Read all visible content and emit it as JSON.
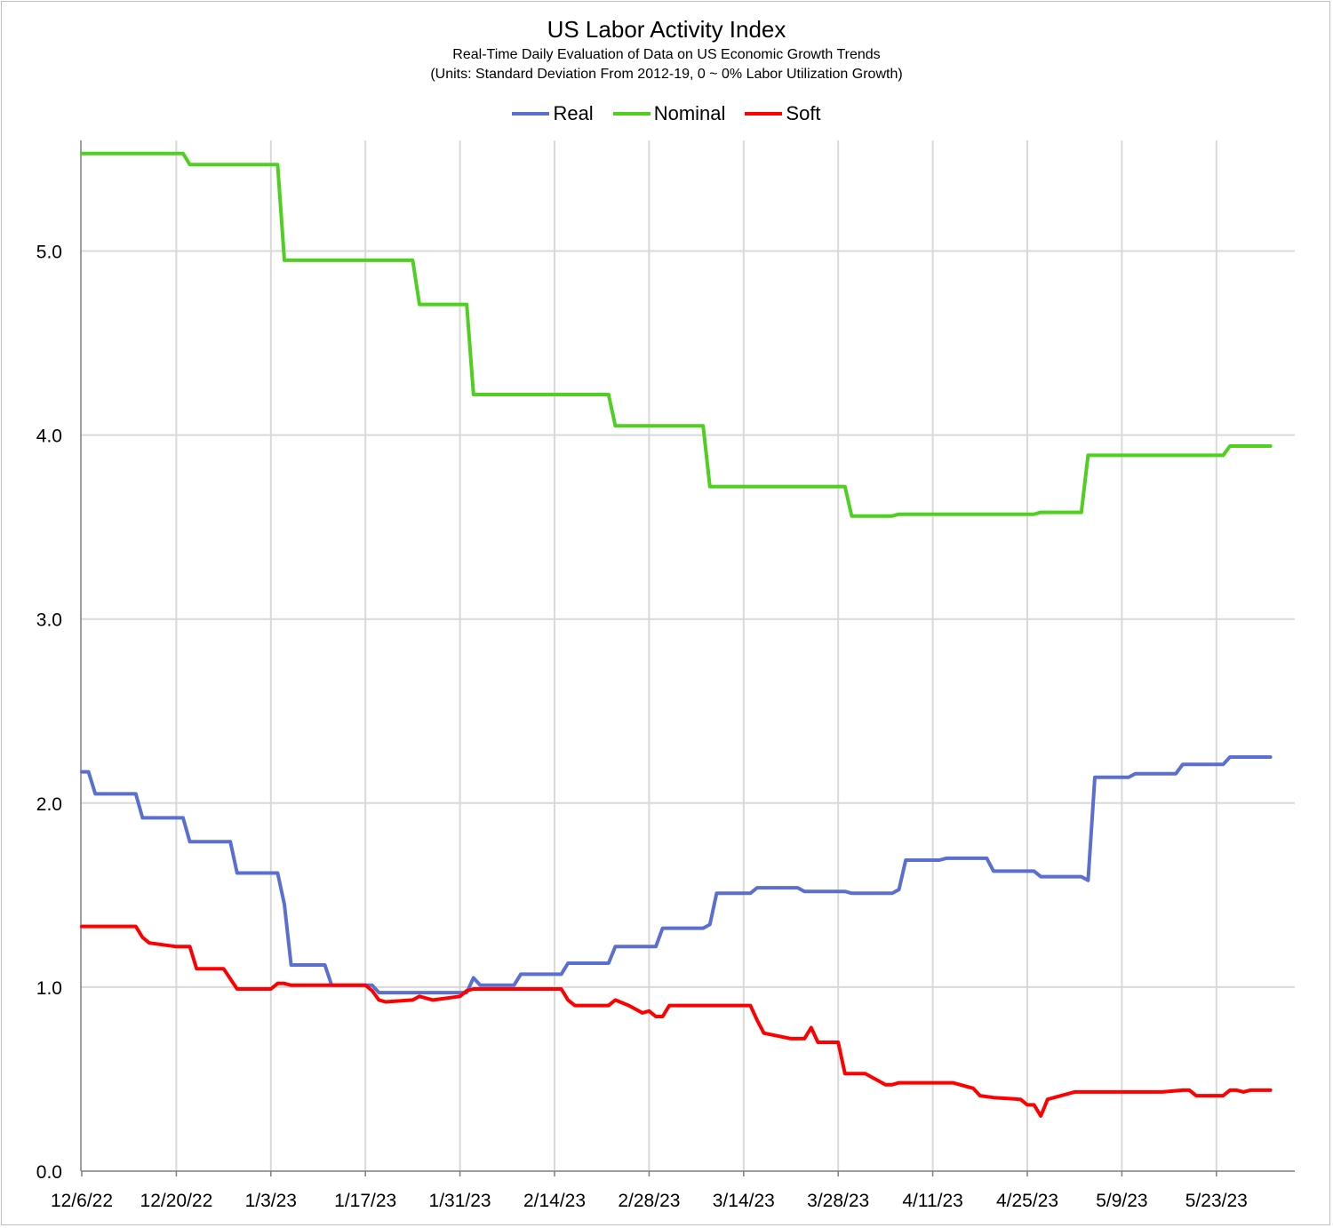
{
  "chart_data": {
    "type": "line",
    "title": "US Labor Activity Index",
    "subtitle_1": "Real-Time Daily Evaluation of Data on US Economic Growth Trends",
    "subtitle_2": "(Units: Standard Deviation From 2012-19, 0 ~ 0%  Labor Utilization Growth)",
    "x_ticks": [
      "12/6/22",
      "12/20/22",
      "1/3/23",
      "1/17/23",
      "1/31/23",
      "2/14/23",
      "2/28/23",
      "3/14/23",
      "3/28/23",
      "4/11/23",
      "4/25/23",
      "5/9/23",
      "5/23/23"
    ],
    "y_ticks": [
      "0.0",
      "1.0",
      "2.0",
      "3.0",
      "4.0",
      "5.0"
    ],
    "ylim": [
      0,
      5.6
    ],
    "xlim": [
      "12/6/22",
      "6/1/23"
    ],
    "grid": true,
    "legend_position": "top-center",
    "series": [
      {
        "name": "Real",
        "color": "#5b6fd0",
        "points": [
          [
            "12/6/22",
            2.17
          ],
          [
            "12/7/22",
            2.17
          ],
          [
            "12/8/22",
            2.05
          ],
          [
            "12/14/22",
            2.05
          ],
          [
            "12/15/22",
            1.92
          ],
          [
            "12/21/22",
            1.92
          ],
          [
            "12/22/22",
            1.79
          ],
          [
            "12/28/22",
            1.79
          ],
          [
            "12/29/22",
            1.62
          ],
          [
            "1/4/23",
            1.62
          ],
          [
            "1/5/23",
            1.45
          ],
          [
            "1/6/23",
            1.12
          ],
          [
            "1/11/23",
            1.12
          ],
          [
            "1/12/23",
            1.01
          ],
          [
            "1/18/23",
            1.01
          ],
          [
            "1/19/23",
            0.97
          ],
          [
            "1/31/23",
            0.97
          ],
          [
            "2/1/23",
            0.97
          ],
          [
            "2/2/23",
            1.05
          ],
          [
            "2/3/23",
            1.01
          ],
          [
            "2/8/23",
            1.01
          ],
          [
            "2/9/23",
            1.07
          ],
          [
            "2/15/23",
            1.07
          ],
          [
            "2/16/23",
            1.13
          ],
          [
            "2/22/23",
            1.13
          ],
          [
            "2/23/23",
            1.22
          ],
          [
            "3/1/23",
            1.22
          ],
          [
            "3/2/23",
            1.32
          ],
          [
            "3/8/23",
            1.32
          ],
          [
            "3/9/23",
            1.34
          ],
          [
            "3/10/23",
            1.51
          ],
          [
            "3/15/23",
            1.51
          ],
          [
            "3/16/23",
            1.54
          ],
          [
            "3/22/23",
            1.54
          ],
          [
            "3/23/23",
            1.52
          ],
          [
            "3/29/23",
            1.52
          ],
          [
            "3/30/23",
            1.51
          ],
          [
            "4/5/23",
            1.51
          ],
          [
            "4/6/23",
            1.53
          ],
          [
            "4/7/23",
            1.69
          ],
          [
            "4/12/23",
            1.69
          ],
          [
            "4/13/23",
            1.7
          ],
          [
            "4/19/23",
            1.7
          ],
          [
            "4/20/23",
            1.63
          ],
          [
            "4/26/23",
            1.63
          ],
          [
            "4/27/23",
            1.6
          ],
          [
            "5/3/23",
            1.6
          ],
          [
            "5/4/23",
            1.58
          ],
          [
            "5/5/23",
            2.14
          ],
          [
            "5/10/23",
            2.14
          ],
          [
            "5/11/23",
            2.16
          ],
          [
            "5/17/23",
            2.16
          ],
          [
            "5/18/23",
            2.21
          ],
          [
            "5/24/23",
            2.21
          ],
          [
            "5/25/23",
            2.25
          ],
          [
            "5/31/23",
            2.25
          ]
        ]
      },
      {
        "name": "Nominal",
        "color": "#4fcf1f",
        "points": [
          [
            "12/6/22",
            5.53
          ],
          [
            "12/21/22",
            5.53
          ],
          [
            "12/22/22",
            5.47
          ],
          [
            "1/4/23",
            5.47
          ],
          [
            "1/5/23",
            4.95
          ],
          [
            "1/24/23",
            4.95
          ],
          [
            "1/25/23",
            4.71
          ],
          [
            "2/1/23",
            4.71
          ],
          [
            "2/2/23",
            4.22
          ],
          [
            "2/22/23",
            4.22
          ],
          [
            "2/23/23",
            4.05
          ],
          [
            "3/8/23",
            4.05
          ],
          [
            "3/9/23",
            3.72
          ],
          [
            "3/29/23",
            3.72
          ],
          [
            "3/30/23",
            3.56
          ],
          [
            "4/5/23",
            3.56
          ],
          [
            "4/6/23",
            3.57
          ],
          [
            "4/26/23",
            3.57
          ],
          [
            "4/27/23",
            3.58
          ],
          [
            "5/3/23",
            3.58
          ],
          [
            "5/4/23",
            3.89
          ],
          [
            "5/24/23",
            3.89
          ],
          [
            "5/25/23",
            3.94
          ],
          [
            "5/31/23",
            3.94
          ]
        ]
      },
      {
        "name": "Soft",
        "color": "#ff0000",
        "points": [
          [
            "12/6/22",
            1.33
          ],
          [
            "12/14/22",
            1.33
          ],
          [
            "12/15/22",
            1.27
          ],
          [
            "12/16/22",
            1.24
          ],
          [
            "12/20/22",
            1.22
          ],
          [
            "12/22/22",
            1.22
          ],
          [
            "12/23/22",
            1.1
          ],
          [
            "12/27/22",
            1.1
          ],
          [
            "12/29/22",
            0.99
          ],
          [
            "1/3/23",
            0.99
          ],
          [
            "1/4/23",
            1.02
          ],
          [
            "1/5/23",
            1.02
          ],
          [
            "1/6/23",
            1.01
          ],
          [
            "1/17/23",
            1.01
          ],
          [
            "1/18/23",
            0.98
          ],
          [
            "1/19/23",
            0.93
          ],
          [
            "1/20/23",
            0.92
          ],
          [
            "1/24/23",
            0.93
          ],
          [
            "1/25/23",
            0.95
          ],
          [
            "1/27/23",
            0.93
          ],
          [
            "1/31/23",
            0.95
          ],
          [
            "2/1/23",
            0.98
          ],
          [
            "2/2/23",
            0.99
          ],
          [
            "2/15/23",
            0.99
          ],
          [
            "2/16/23",
            0.93
          ],
          [
            "2/17/23",
            0.9
          ],
          [
            "2/22/23",
            0.9
          ],
          [
            "2/23/23",
            0.93
          ],
          [
            "2/25/23",
            0.9
          ],
          [
            "2/27/23",
            0.86
          ],
          [
            "2/28/23",
            0.87
          ],
          [
            "3/1/23",
            0.84
          ],
          [
            "3/2/23",
            0.84
          ],
          [
            "3/3/23",
            0.9
          ],
          [
            "3/15/23",
            0.9
          ],
          [
            "3/16/23",
            0.82
          ],
          [
            "3/17/23",
            0.75
          ],
          [
            "3/21/23",
            0.72
          ],
          [
            "3/23/23",
            0.72
          ],
          [
            "3/24/23",
            0.78
          ],
          [
            "3/25/23",
            0.7
          ],
          [
            "3/28/23",
            0.7
          ],
          [
            "3/29/23",
            0.53
          ],
          [
            "4/1/23",
            0.53
          ],
          [
            "4/3/23",
            0.49
          ],
          [
            "4/4/23",
            0.47
          ],
          [
            "4/5/23",
            0.47
          ],
          [
            "4/6/23",
            0.48
          ],
          [
            "4/14/23",
            0.48
          ],
          [
            "4/17/23",
            0.45
          ],
          [
            "4/18/23",
            0.41
          ],
          [
            "4/20/23",
            0.4
          ],
          [
            "4/24/23",
            0.39
          ],
          [
            "4/25/23",
            0.36
          ],
          [
            "4/26/23",
            0.36
          ],
          [
            "4/27/23",
            0.3
          ],
          [
            "4/28/23",
            0.39
          ],
          [
            "4/30/23",
            0.41
          ],
          [
            "5/2/23",
            0.43
          ],
          [
            "5/4/23",
            0.43
          ],
          [
            "5/15/23",
            0.43
          ],
          [
            "5/18/23",
            0.44
          ],
          [
            "5/19/23",
            0.44
          ],
          [
            "5/20/23",
            0.41
          ],
          [
            "5/24/23",
            0.41
          ],
          [
            "5/25/23",
            0.44
          ],
          [
            "5/26/23",
            0.44
          ],
          [
            "5/27/23",
            0.43
          ],
          [
            "5/28/23",
            0.44
          ],
          [
            "5/31/23",
            0.44
          ]
        ]
      }
    ]
  }
}
